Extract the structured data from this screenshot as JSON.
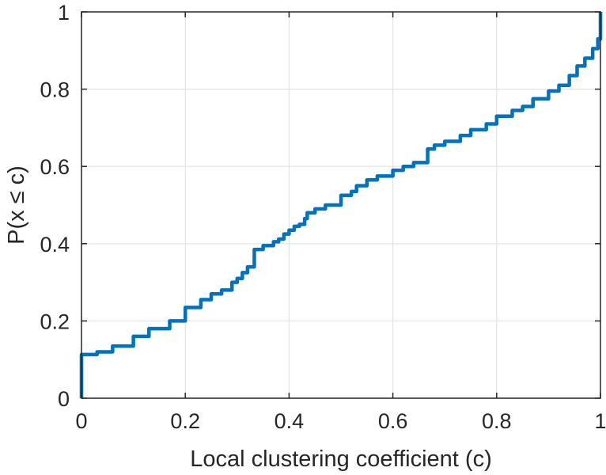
{
  "chart_data": {
    "type": "line",
    "title": "",
    "xlabel": "Local clustering coefficient (c)",
    "ylabel": "P(x ≤ c)",
    "xlim": [
      0,
      1
    ],
    "ylim": [
      0,
      1
    ],
    "grid": true,
    "xticks": [
      0,
      0.2,
      0.4,
      0.6,
      0.8,
      1
    ],
    "yticks": [
      0,
      0.2,
      0.4,
      0.6,
      0.8,
      1
    ],
    "xtick_labels": [
      "0",
      "0.2",
      "0.4",
      "0.6",
      "0.8",
      "1"
    ],
    "ytick_labels": [
      "0",
      "0.2",
      "0.4",
      "0.6",
      "0.8",
      "1"
    ],
    "series": [
      {
        "color": "#0072bd",
        "step": true,
        "x": [
          0,
          0,
          0.03,
          0.06,
          0.1,
          0.13,
          0.17,
          0.2,
          0.23,
          0.25,
          0.27,
          0.29,
          0.3,
          0.31,
          0.32,
          0.333,
          0.333,
          0.35,
          0.37,
          0.38,
          0.39,
          0.4,
          0.41,
          0.42,
          0.43,
          0.435,
          0.45,
          0.47,
          0.5,
          0.5,
          0.52,
          0.53,
          0.55,
          0.57,
          0.6,
          0.62,
          0.64,
          0.667,
          0.667,
          0.68,
          0.7,
          0.73,
          0.75,
          0.78,
          0.8,
          0.83,
          0.85,
          0.87,
          0.9,
          0.92,
          0.94,
          0.955,
          0.97,
          0.985,
          0.995,
          1,
          1
        ],
        "y": [
          0,
          0.113,
          0.12,
          0.135,
          0.16,
          0.18,
          0.2,
          0.235,
          0.255,
          0.27,
          0.28,
          0.3,
          0.31,
          0.325,
          0.34,
          0.35,
          0.385,
          0.395,
          0.405,
          0.412,
          0.425,
          0.435,
          0.445,
          0.45,
          0.465,
          0.48,
          0.49,
          0.5,
          0.51,
          0.525,
          0.535,
          0.55,
          0.565,
          0.575,
          0.59,
          0.6,
          0.61,
          0.62,
          0.645,
          0.655,
          0.665,
          0.68,
          0.695,
          0.71,
          0.73,
          0.745,
          0.755,
          0.775,
          0.795,
          0.81,
          0.835,
          0.86,
          0.88,
          0.905,
          0.93,
          0.935,
          1
        ]
      }
    ]
  }
}
